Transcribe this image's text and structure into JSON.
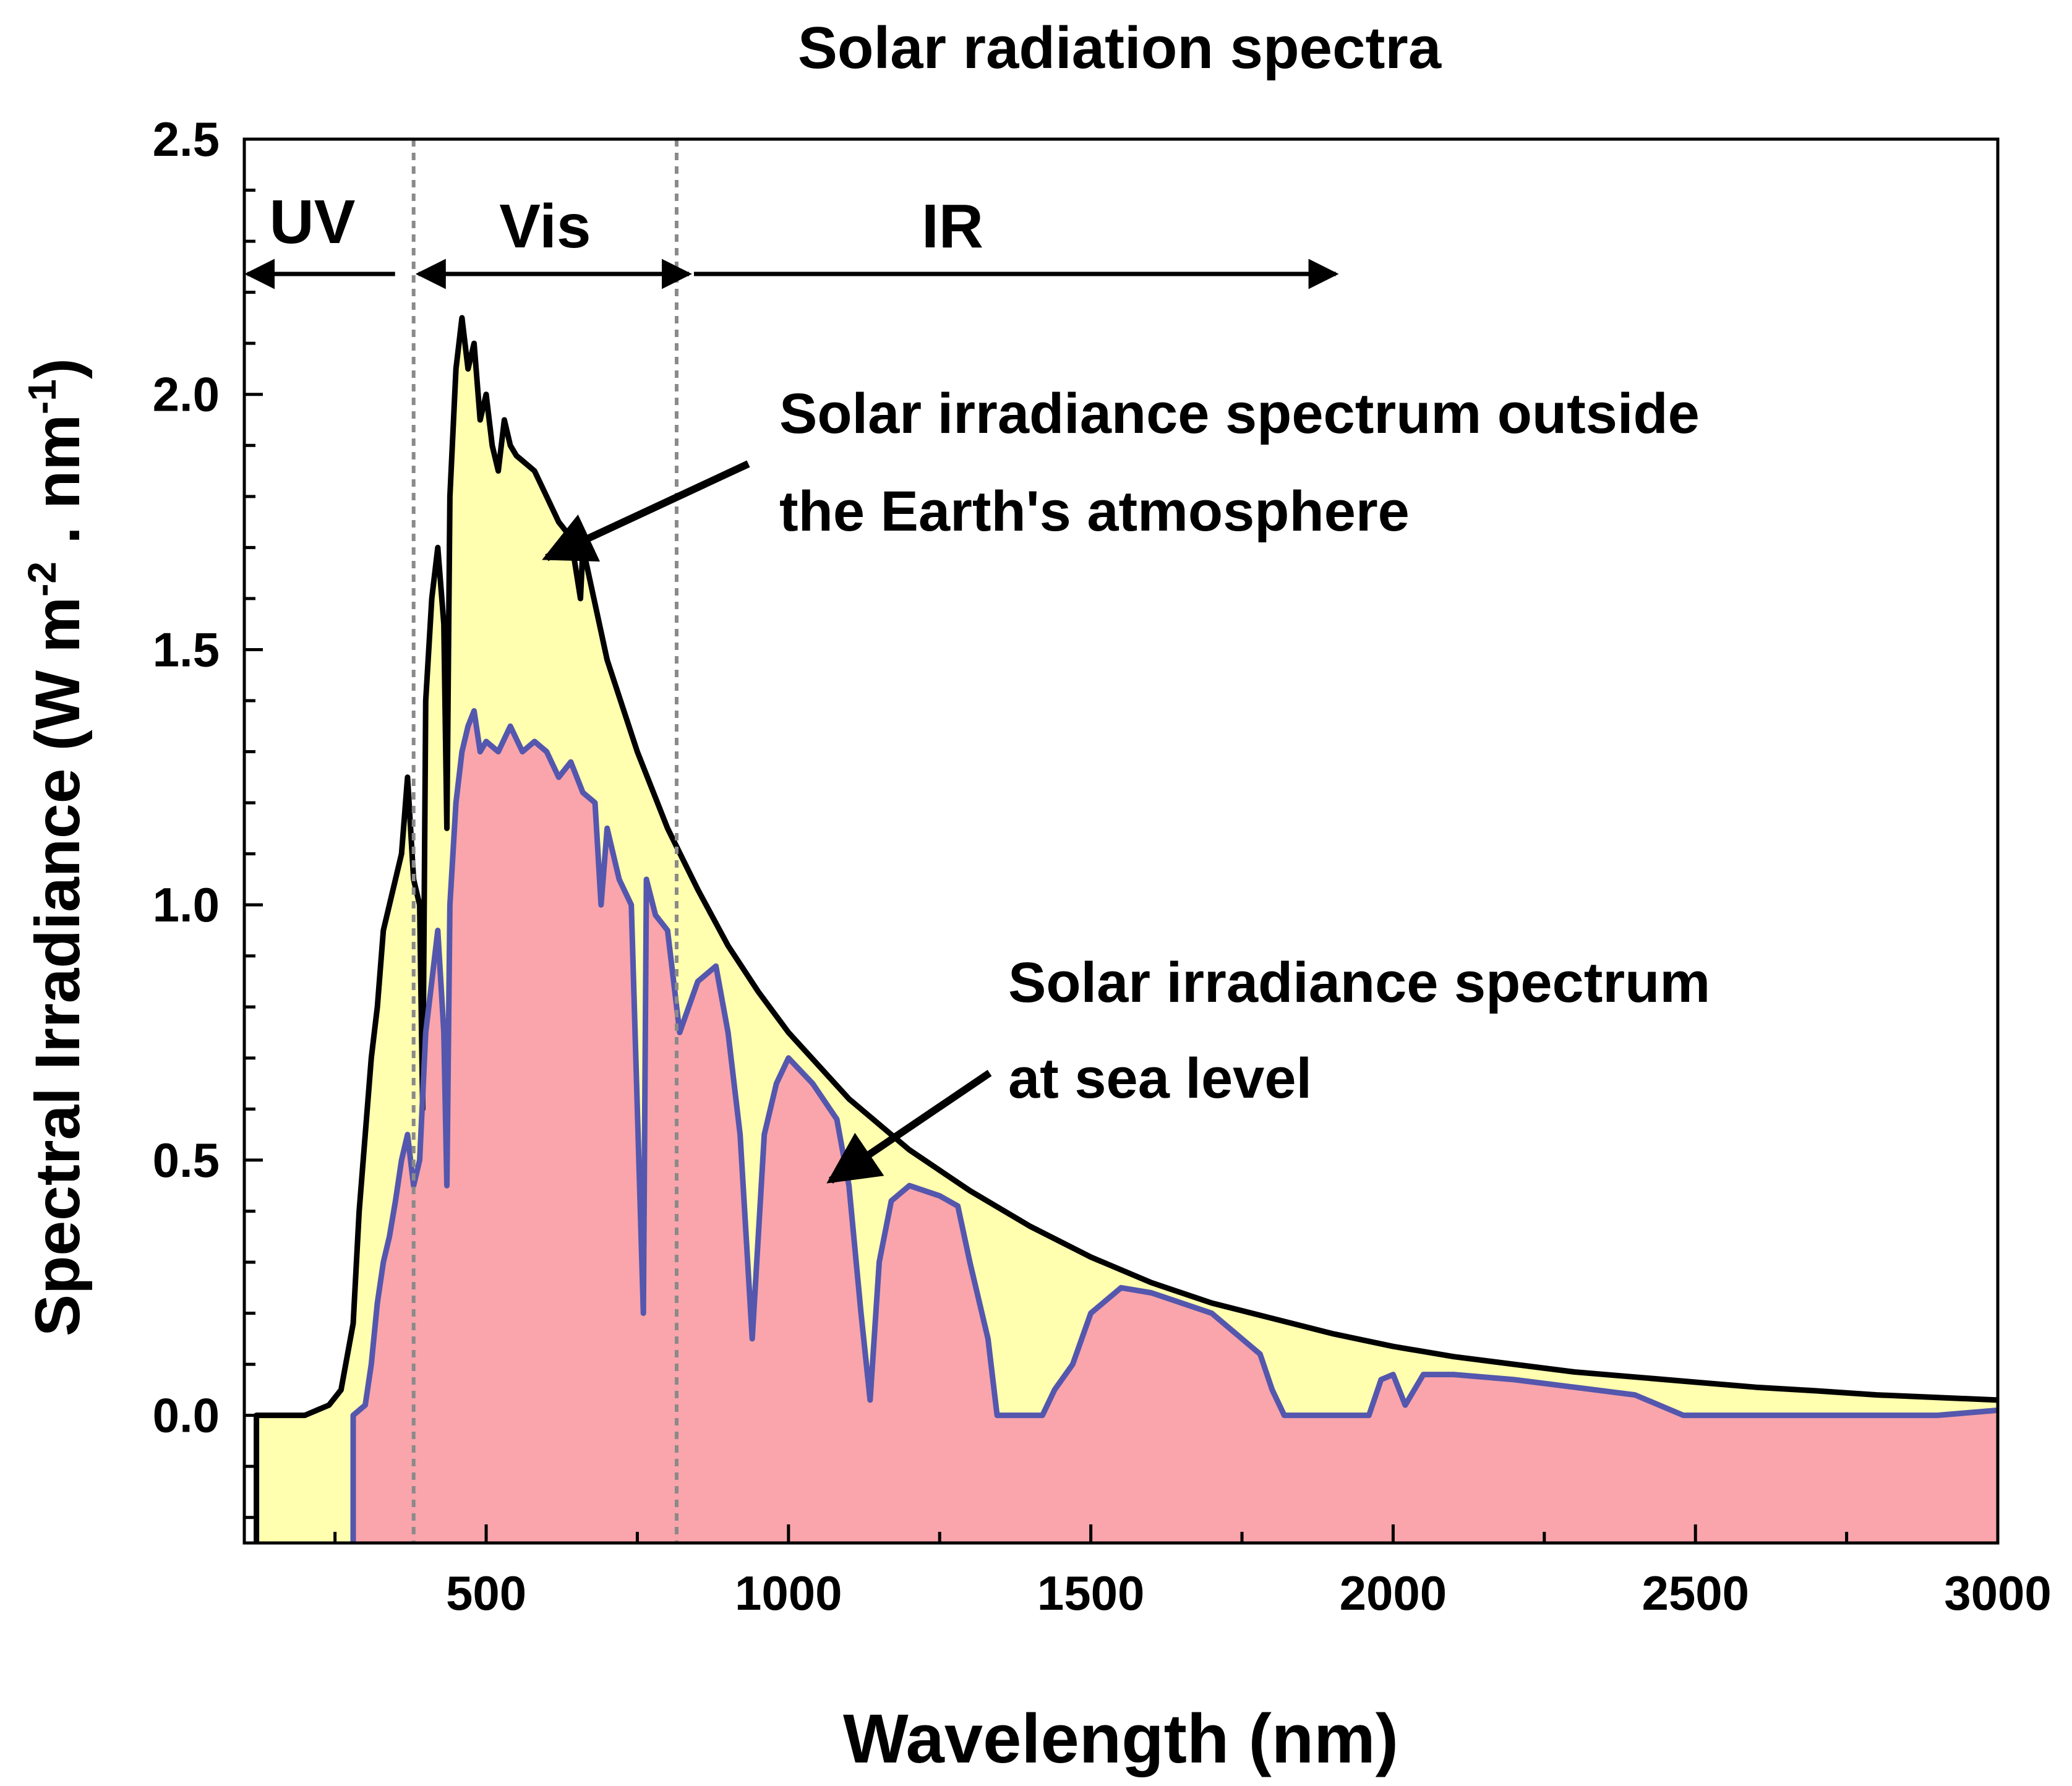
{
  "chart_data": {
    "type": "area",
    "title": "Solar radiation spectra",
    "xlabel": "Wavelength (nm)",
    "ylabel": "Spectral Irradiance (W m-2 . nm-1)",
    "ylabel_parts": {
      "pre": "Spectral Irradiance (W m",
      "sup1": "-2",
      "mid": " . nm",
      "sup2": "-1",
      "post": ")"
    },
    "xlim": [
      100,
      3000
    ],
    "ylim": [
      -0.25,
      2.5
    ],
    "xticks": [
      500,
      1000,
      1500,
      2000,
      2500,
      3000
    ],
    "xtick_labels": [
      "500",
      "1000",
      "1500",
      "2000",
      "2500",
      "3000"
    ],
    "yticks": [
      0.0,
      0.5,
      1.0,
      1.5,
      2.0,
      2.5
    ],
    "ytick_labels": [
      "0.0",
      "0.5",
      "1.0",
      "1.5",
      "2.0",
      "2.5"
    ],
    "region_boundaries": [
      380,
      815
    ],
    "regions": [
      {
        "label": "UV",
        "from": 100,
        "to": 380
      },
      {
        "label": "Vis",
        "from": 380,
        "to": 815
      },
      {
        "label": "IR",
        "from": 815,
        "to": 1900
      }
    ],
    "series": [
      {
        "name": "Solar irradiance spectrum outside the Earth's atmosphere",
        "line_color": "#000000",
        "fill_color": "#ffffaf",
        "points": [
          [
            120,
            -0.25
          ],
          [
            120,
            0.0
          ],
          [
            200,
            0.0
          ],
          [
            240,
            0.02
          ],
          [
            260,
            0.05
          ],
          [
            280,
            0.18
          ],
          [
            290,
            0.4
          ],
          [
            300,
            0.55
          ],
          [
            310,
            0.7
          ],
          [
            320,
            0.8
          ],
          [
            330,
            0.95
          ],
          [
            340,
            1.0
          ],
          [
            350,
            1.05
          ],
          [
            360,
            1.1
          ],
          [
            370,
            1.25
          ],
          [
            380,
            1.05
          ],
          [
            390,
            1.0
          ],
          [
            395,
            0.6
          ],
          [
            400,
            1.4
          ],
          [
            410,
            1.6
          ],
          [
            420,
            1.7
          ],
          [
            430,
            1.55
          ],
          [
            435,
            1.15
          ],
          [
            440,
            1.8
          ],
          [
            450,
            2.05
          ],
          [
            460,
            2.15
          ],
          [
            470,
            2.05
          ],
          [
            480,
            2.1
          ],
          [
            490,
            1.95
          ],
          [
            500,
            2.0
          ],
          [
            510,
            1.9
          ],
          [
            520,
            1.85
          ],
          [
            530,
            1.95
          ],
          [
            540,
            1.9
          ],
          [
            550,
            1.88
          ],
          [
            560,
            1.87
          ],
          [
            580,
            1.85
          ],
          [
            600,
            1.8
          ],
          [
            620,
            1.75
          ],
          [
            640,
            1.72
          ],
          [
            656,
            1.6
          ],
          [
            660,
            1.7
          ],
          [
            700,
            1.48
          ],
          [
            750,
            1.3
          ],
          [
            800,
            1.15
          ],
          [
            850,
            1.03
          ],
          [
            900,
            0.92
          ],
          [
            950,
            0.83
          ],
          [
            1000,
            0.75
          ],
          [
            1100,
            0.62
          ],
          [
            1200,
            0.52
          ],
          [
            1300,
            0.44
          ],
          [
            1400,
            0.37
          ],
          [
            1500,
            0.31
          ],
          [
            1600,
            0.26
          ],
          [
            1700,
            0.22
          ],
          [
            1800,
            0.19
          ],
          [
            1900,
            0.16
          ],
          [
            2000,
            0.135
          ],
          [
            2100,
            0.115
          ],
          [
            2200,
            0.1
          ],
          [
            2300,
            0.085
          ],
          [
            2400,
            0.075
          ],
          [
            2500,
            0.065
          ],
          [
            2600,
            0.055
          ],
          [
            2700,
            0.048
          ],
          [
            2800,
            0.04
          ],
          [
            2900,
            0.035
          ],
          [
            3000,
            0.03
          ]
        ]
      },
      {
        "name": "Solar irradiance spectrum at sea level",
        "line_color": "#5457ad",
        "fill_color": "#f9a5ab",
        "points": [
          [
            280,
            -0.25
          ],
          [
            280,
            0.0
          ],
          [
            300,
            0.02
          ],
          [
            310,
            0.1
          ],
          [
            320,
            0.22
          ],
          [
            330,
            0.3
          ],
          [
            340,
            0.35
          ],
          [
            350,
            0.42
          ],
          [
            360,
            0.5
          ],
          [
            370,
            0.55
          ],
          [
            380,
            0.45
          ],
          [
            390,
            0.5
          ],
          [
            400,
            0.75
          ],
          [
            410,
            0.85
          ],
          [
            420,
            0.95
          ],
          [
            430,
            0.75
          ],
          [
            435,
            0.45
          ],
          [
            440,
            1.0
          ],
          [
            450,
            1.2
          ],
          [
            460,
            1.3
          ],
          [
            470,
            1.35
          ],
          [
            480,
            1.38
          ],
          [
            490,
            1.3
          ],
          [
            500,
            1.32
          ],
          [
            520,
            1.3
          ],
          [
            540,
            1.35
          ],
          [
            560,
            1.3
          ],
          [
            580,
            1.32
          ],
          [
            600,
            1.3
          ],
          [
            620,
            1.25
          ],
          [
            640,
            1.28
          ],
          [
            660,
            1.22
          ],
          [
            680,
            1.2
          ],
          [
            690,
            1.0
          ],
          [
            700,
            1.15
          ],
          [
            720,
            1.05
          ],
          [
            740,
            1.0
          ],
          [
            760,
            0.2
          ],
          [
            765,
            1.05
          ],
          [
            780,
            0.98
          ],
          [
            800,
            0.95
          ],
          [
            815,
            0.8
          ],
          [
            820,
            0.75
          ],
          [
            850,
            0.85
          ],
          [
            880,
            0.88
          ],
          [
            900,
            0.75
          ],
          [
            920,
            0.55
          ],
          [
            940,
            0.15
          ],
          [
            960,
            0.55
          ],
          [
            980,
            0.65
          ],
          [
            1000,
            0.7
          ],
          [
            1040,
            0.65
          ],
          [
            1080,
            0.58
          ],
          [
            1100,
            0.45
          ],
          [
            1120,
            0.2
          ],
          [
            1135,
            0.03
          ],
          [
            1150,
            0.3
          ],
          [
            1170,
            0.42
          ],
          [
            1200,
            0.45
          ],
          [
            1250,
            0.43
          ],
          [
            1280,
            0.41
          ],
          [
            1300,
            0.3
          ],
          [
            1330,
            0.15
          ],
          [
            1345,
            0.0
          ],
          [
            1420,
            0.0
          ],
          [
            1440,
            0.05
          ],
          [
            1470,
            0.1
          ],
          [
            1500,
            0.2
          ],
          [
            1550,
            0.25
          ],
          [
            1600,
            0.24
          ],
          [
            1650,
            0.22
          ],
          [
            1700,
            0.2
          ],
          [
            1740,
            0.16
          ],
          [
            1780,
            0.12
          ],
          [
            1800,
            0.05
          ],
          [
            1820,
            0.0
          ],
          [
            1960,
            0.0
          ],
          [
            1980,
            0.07
          ],
          [
            2000,
            0.08
          ],
          [
            2020,
            0.02
          ],
          [
            2050,
            0.08
          ],
          [
            2100,
            0.08
          ],
          [
            2200,
            0.07
          ],
          [
            2300,
            0.055
          ],
          [
            2400,
            0.04
          ],
          [
            2480,
            0.0
          ],
          [
            2900,
            0.0
          ],
          [
            3000,
            0.01
          ]
        ]
      }
    ],
    "annotations": [
      {
        "lines": [
          "Solar irradiance spectrum outside",
          "the Earth's atmosphere"
        ],
        "arrow_to": [
          600,
          1.68
        ]
      },
      {
        "lines": [
          "Solar irradiance spectrum",
          "at sea level"
        ],
        "arrow_to": [
          1070,
          0.46
        ]
      }
    ]
  }
}
